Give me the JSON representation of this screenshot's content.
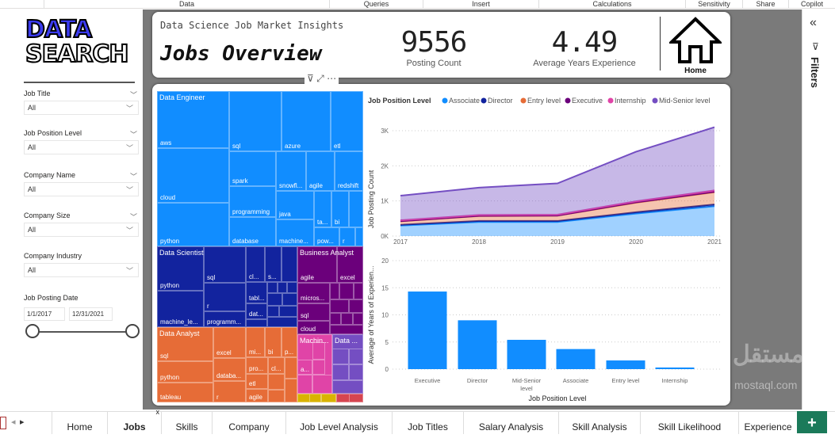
{
  "ribbon": [
    "Data",
    "Queries",
    "Insert",
    "Calculations",
    "Sensitivity",
    "Share",
    "Copilot"
  ],
  "logo": {
    "line1": "DATA",
    "line2": "SEARCH"
  },
  "slicers": [
    {
      "title": "Job Title",
      "value": "All"
    },
    {
      "title": "Job Position Level",
      "value": "All"
    },
    {
      "title": "Company Name",
      "value": "All"
    },
    {
      "title": "Company Size",
      "value": "All"
    },
    {
      "title": "Company Industry",
      "value": "All"
    }
  ],
  "date_slicer": {
    "title": "Job Posting Date",
    "start": "1/1/2017",
    "end": "12/31/2021"
  },
  "header": {
    "subtitle": "Data Science Job Market Insights",
    "title": "Jobs Overview",
    "home_label": "Home"
  },
  "kpis": [
    {
      "value": "9556",
      "label": "Posting Count"
    },
    {
      "value": "4.49",
      "label": "Average Years Experience"
    }
  ],
  "treemap": {
    "groups": [
      {
        "name": "Data Engineer",
        "color": "#118dff",
        "skills": [
          "aws",
          "cloud",
          "python",
          "sql",
          "azure",
          "etl",
          "spark",
          "programming",
          "database",
          "snowfl...",
          "agile",
          "redshift",
          "java",
          "machine...",
          "ta...",
          "bi",
          "pow...",
          "r"
        ]
      },
      {
        "name": "Data Scientist",
        "color": "#12239e",
        "skills": [
          "python",
          "machine_le...",
          "sql",
          "r",
          "programm...",
          "cl...",
          "s...",
          "tabl...",
          "dat..."
        ]
      },
      {
        "name": "Business Analyst",
        "color": "#6b007b",
        "skills": [
          "agile",
          "excel",
          "micros...",
          "sql",
          "cloud"
        ]
      },
      {
        "name": "Data Analyst",
        "color": "#e66c37",
        "skills": [
          "sql",
          "python",
          "tableau",
          "excel",
          "databa...",
          "r",
          "mi...",
          "bi",
          "p...",
          "pro...",
          "etl",
          "agile",
          "cl..."
        ]
      },
      {
        "name": "Machin...",
        "color": "#e044a7",
        "skills": [
          "a..."
        ]
      },
      {
        "name": "Data ...",
        "color": "#744ec2",
        "skills": []
      },
      {
        "name": "",
        "color": "#d9b300",
        "skills": []
      },
      {
        "name": "",
        "color": "#d64550",
        "skills": []
      }
    ]
  },
  "chart_data": [
    {
      "type": "area",
      "stacked": true,
      "legend_title": "Job Position Level",
      "legend_position": "top-left",
      "x": [
        2017,
        2018,
        2019,
        2020,
        2021
      ],
      "ylabel": "Job Posting Count",
      "xlabel": "",
      "yticks": [
        "0K",
        "1K",
        "2K",
        "3K"
      ],
      "ylim": [
        0,
        3000
      ],
      "grid": true,
      "series": [
        {
          "name": "Associate",
          "color": "#118dff",
          "values": [
            300,
            400,
            400,
            640,
            850
          ]
        },
        {
          "name": "Director",
          "color": "#12239e",
          "values": [
            20,
            30,
            30,
            40,
            50
          ]
        },
        {
          "name": "Entry level",
          "color": "#e66c37",
          "values": [
            100,
            140,
            150,
            270,
            350
          ]
        },
        {
          "name": "Executive",
          "color": "#6b007b",
          "values": [
            5,
            5,
            5,
            10,
            10
          ]
        },
        {
          "name": "Internship",
          "color": "#e044a7",
          "values": [
            25,
            25,
            25,
            30,
            40
          ]
        },
        {
          "name": "Mid-Senior level",
          "color": "#744ec2",
          "values": [
            700,
            780,
            890,
            1410,
            1800
          ]
        }
      ]
    },
    {
      "type": "bar",
      "categories": [
        "Executive",
        "Director",
        "Mid-Senior level",
        "Associate",
        "Entry level",
        "Internship"
      ],
      "values": [
        14.3,
        9.0,
        5.4,
        3.7,
        1.6,
        0.3
      ],
      "color": "#118dff",
      "xlabel": "Job Position Level",
      "ylabel": "Average of Years of Experien...",
      "ylim": [
        0,
        20
      ],
      "yticks": [
        "0",
        "5",
        "10",
        "15",
        "20"
      ],
      "grid": true
    }
  ],
  "filters_label": "Filters",
  "tabs": [
    "Home",
    "Jobs",
    "Skills",
    "Company",
    "Job Level Analysis",
    "Job Titles",
    "Salary Analysis",
    "Skill Analysis",
    "Skill Likelihood",
    "Experience"
  ],
  "active_tab": "Jobs",
  "watermark": {
    "arabic": "مستقل",
    "latin": "mostaql.com"
  }
}
